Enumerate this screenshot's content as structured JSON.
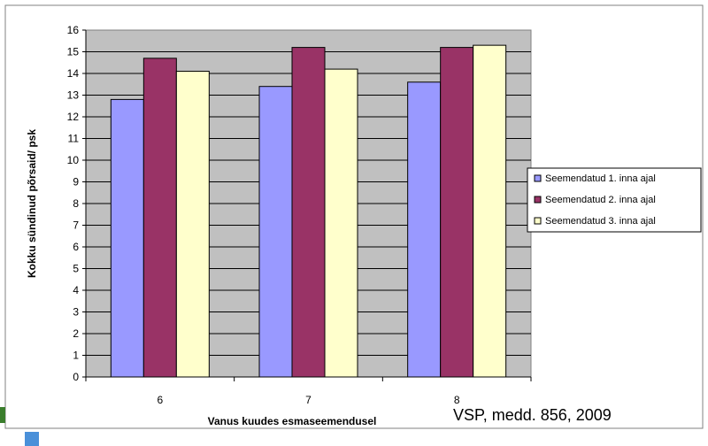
{
  "chart_data": {
    "type": "bar",
    "title": "",
    "xlabel": "Vanus kuudes esmaseemendusel",
    "ylabel": "Kokku sündinud põrsaid/ psk",
    "categories": [
      "6",
      "7",
      "8"
    ],
    "ylim": [
      0,
      16
    ],
    "yticks": [
      0,
      1,
      2,
      3,
      4,
      5,
      6,
      7,
      8,
      9,
      10,
      11,
      12,
      13,
      14,
      15,
      16
    ],
    "grid": true,
    "legend_position": "right",
    "series": [
      {
        "name": "Seemendatud 1. inna ajal",
        "values": [
          12.8,
          13.4,
          13.6
        ],
        "color": "#9999ff"
      },
      {
        "name": "Seemendatud 2. inna ajal",
        "values": [
          14.7,
          15.2,
          15.2
        ],
        "color": "#993366"
      },
      {
        "name": "Seemendatud 3. inna ajal",
        "values": [
          14.1,
          14.2,
          15.3
        ],
        "color": "#ffffcc"
      }
    ],
    "plot_background": "#c0c0c0"
  },
  "source_note": "VSP, medd. 856, 2009"
}
